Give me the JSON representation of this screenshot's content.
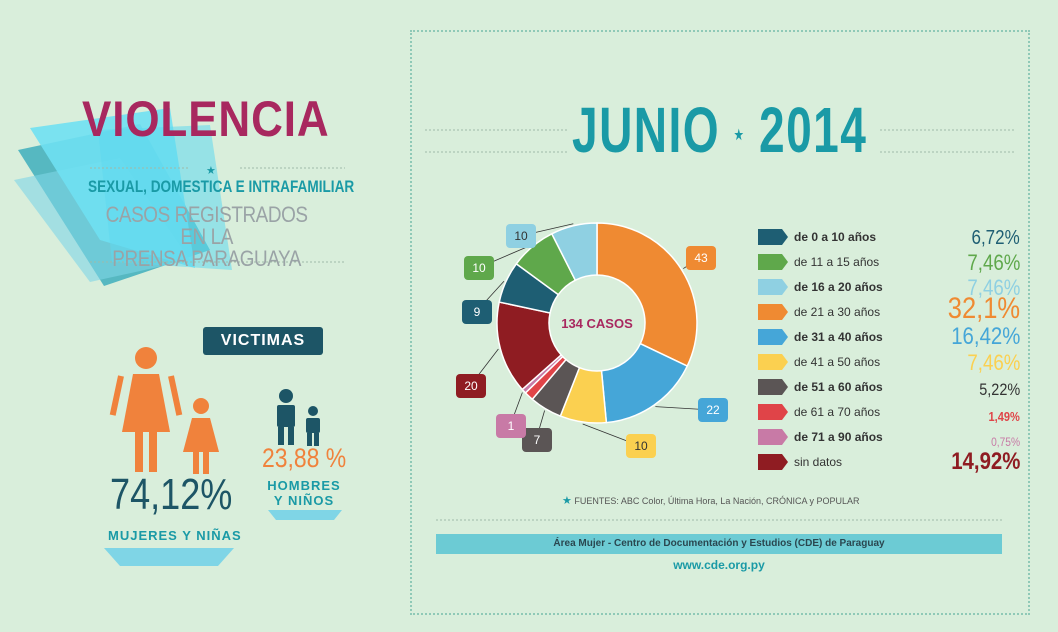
{
  "left": {
    "title": "VIOLENCIA",
    "subtitle": "SEXUAL, DOMESTICA E INTRAFAMILIAR",
    "subtitle2_line1": "CASOS REGISTRADOS EN LA",
    "subtitle2_line2": "PRENSA PARAGUAYA",
    "victimas_label": "VICTIMAS",
    "women_pct": "74,12%",
    "women_label": "MUJERES Y NIÑAS",
    "men_pct": "23,88 %",
    "men_label_line1": "HOMBRES",
    "men_label_line2": "Y NIÑOS"
  },
  "right": {
    "title_month": "JUNIO",
    "title_year": "2014",
    "center_label": "134 CASOS",
    "fuentes": "FUENTES: ABC Color, Última Hora, La Nación, CRÓNICA y POPULAR",
    "area": "Área Mujer - Centro de Documentación y Estudios (CDE) de Paraguay",
    "website": "www.cde.org.py"
  },
  "colors": {
    "teal": "#1a9aa6",
    "magenta": "#a8285f",
    "dark": "#1d5566",
    "orange": "#f0823c"
  },
  "chart_data": {
    "type": "pie",
    "title": "JUNIO 2014",
    "center_label": "134 CASOS",
    "total": 134,
    "slices": [
      {
        "label": "de 0 a 10 años",
        "value": 9,
        "percent": "6,72%",
        "color": "#1e5e73"
      },
      {
        "label": "de 11 a 15 años",
        "value": 10,
        "percent": "7,46%",
        "color": "#5fa84b"
      },
      {
        "label": "de 16 a 20 años",
        "value": 10,
        "percent": "7,46%",
        "color": "#8fd0e2"
      },
      {
        "label": "de 21 a 30 años",
        "value": 43,
        "percent": "32,1%",
        "color": "#ef8a32"
      },
      {
        "label": "de 31 a 40 años",
        "value": 22,
        "percent": "16,42%",
        "color": "#45a6d8"
      },
      {
        "label": "de 41 a 50 años",
        "value": 10,
        "percent": "7,46%",
        "color": "#fbd050"
      },
      {
        "label": "de 51 a 60 años",
        "value": 7,
        "percent": "5,22%",
        "color": "#5b5555"
      },
      {
        "label": "de 61 a 70 años",
        "value": 2,
        "percent": "1,49%",
        "color": "#e04448"
      },
      {
        "label": "de 71 a 90 años",
        "value": 1,
        "percent": "0,75%",
        "color": "#c87aa6"
      },
      {
        "label": "sin datos",
        "value": 20,
        "percent": "14,92%",
        "color": "#8f1c22"
      }
    ],
    "pie_order": [
      3,
      4,
      5,
      6,
      7,
      8,
      9,
      0,
      1,
      2
    ],
    "callout_slices": [
      0,
      1,
      2,
      3,
      4,
      5,
      6,
      8,
      9
    ],
    "legend_placement": "right"
  }
}
